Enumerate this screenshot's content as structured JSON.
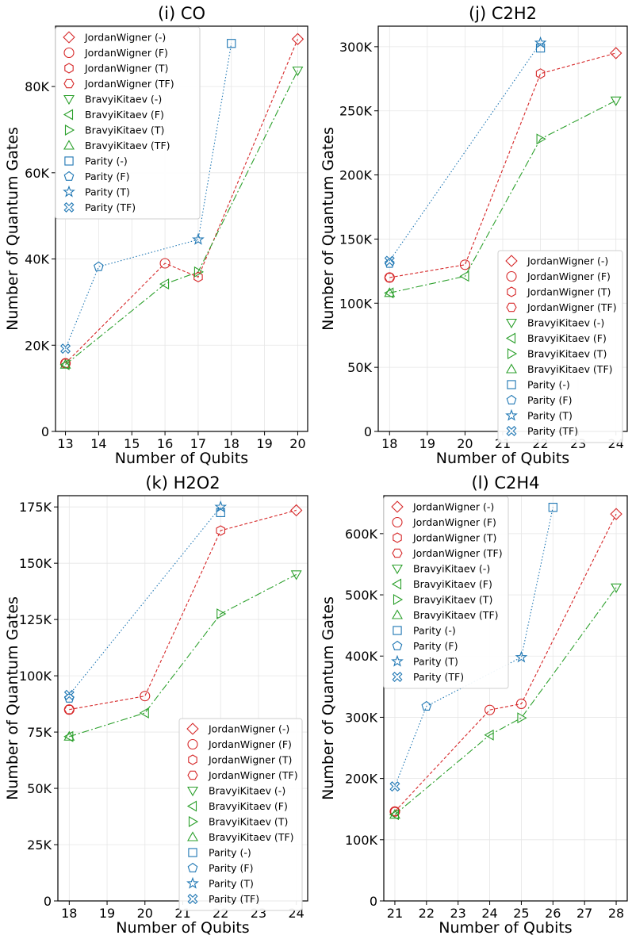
{
  "figure": {
    "ylabel": "Number of Quantum Gates",
    "xlabel": "Number of Qubits"
  },
  "series_styles": [
    {
      "name": "JordanWigner (-)",
      "color": "#d62728",
      "marker": "diamond"
    },
    {
      "name": "JordanWigner (F)",
      "color": "#d62728",
      "marker": "circle"
    },
    {
      "name": "JordanWigner (T)",
      "color": "#d62728",
      "marker": "hexagon"
    },
    {
      "name": "JordanWigner (TF)",
      "color": "#d62728",
      "marker": "hexagon2"
    },
    {
      "name": "BravyiKitaev (-)",
      "color": "#2ca02c",
      "marker": "triangle-down"
    },
    {
      "name": "BravyiKitaev (F)",
      "color": "#2ca02c",
      "marker": "triangle-left"
    },
    {
      "name": "BravyiKitaev (T)",
      "color": "#2ca02c",
      "marker": "triangle-right"
    },
    {
      "name": "BravyiKitaev (TF)",
      "color": "#2ca02c",
      "marker": "triangle-up"
    },
    {
      "name": "Parity (-)",
      "color": "#1f77b4",
      "marker": "square"
    },
    {
      "name": "Parity (F)",
      "color": "#1f77b4",
      "marker": "pentagon"
    },
    {
      "name": "Parity (T)",
      "color": "#1f77b4",
      "marker": "star"
    },
    {
      "name": "Parity (TF)",
      "color": "#1f77b4",
      "marker": "x-filled"
    }
  ],
  "chart_data": [
    {
      "type": "line",
      "title": "(i) CO",
      "xlabel": "Number of Qubits",
      "ylabel": "Number of Quantum Gates",
      "xlim": [
        12.7,
        20.3
      ],
      "ylim": [
        0,
        94000
      ],
      "xticks": [
        13,
        14,
        15,
        16,
        17,
        18,
        19,
        20
      ],
      "yticks": [
        0,
        20000,
        40000,
        60000,
        80000
      ],
      "ytick_labels": [
        "0",
        "20K",
        "40K",
        "60K",
        "80K"
      ],
      "legend_position": "top-left",
      "series": [
        {
          "name": "JordanWigner (-)",
          "x": [
            20
          ],
          "y": [
            91000
          ]
        },
        {
          "name": "JordanWigner (F)",
          "x": [
            13,
            16
          ],
          "y": [
            15800,
            39000
          ]
        },
        {
          "name": "JordanWigner (T)",
          "x": [
            17
          ],
          "y": [
            35800
          ]
        },
        {
          "name": "JordanWigner (TF)",
          "x": [
            13
          ],
          "y": [
            15800
          ]
        },
        {
          "name": "BravyiKitaev (-)",
          "x": [
            20
          ],
          "y": [
            83700
          ]
        },
        {
          "name": "BravyiKitaev (F)",
          "x": [
            13,
            16
          ],
          "y": [
            15500,
            34200
          ]
        },
        {
          "name": "BravyiKitaev (T)",
          "x": [
            17
          ],
          "y": [
            37000
          ]
        },
        {
          "name": "BravyiKitaev (TF)",
          "x": [
            13
          ],
          "y": [
            15500
          ]
        },
        {
          "name": "Parity (-)",
          "x": [
            18
          ],
          "y": [
            90000
          ]
        },
        {
          "name": "Parity (F)",
          "x": [
            14
          ],
          "y": [
            38200
          ]
        },
        {
          "name": "Parity (T)",
          "x": [
            17
          ],
          "y": [
            44500
          ]
        },
        {
          "name": "Parity (TF)",
          "x": [
            13
          ],
          "y": [
            19200
          ]
        }
      ]
    },
    {
      "type": "line",
      "title": "(j) C2H2",
      "xlabel": "Number of Qubits",
      "ylabel": "Number of Quantum Gates",
      "xlim": [
        17.7,
        24.3
      ],
      "ylim": [
        0,
        316000
      ],
      "xticks": [
        18,
        19,
        20,
        21,
        22,
        23,
        24
      ],
      "yticks": [
        0,
        50000,
        100000,
        150000,
        200000,
        250000,
        300000
      ],
      "ytick_labels": [
        "0",
        "50K",
        "100K",
        "150K",
        "200K",
        "250K",
        "300K"
      ],
      "legend_position": "center-right",
      "series": [
        {
          "name": "JordanWigner (-)",
          "x": [
            24
          ],
          "y": [
            295000
          ]
        },
        {
          "name": "JordanWigner (F)",
          "x": [
            18,
            20
          ],
          "y": [
            120000,
            130000
          ]
        },
        {
          "name": "JordanWigner (T)",
          "x": [
            22
          ],
          "y": [
            279000
          ]
        },
        {
          "name": "JordanWigner (TF)",
          "x": [
            18
          ],
          "y": [
            120000
          ]
        },
        {
          "name": "BravyiKitaev (-)",
          "x": [
            24
          ],
          "y": [
            258000
          ]
        },
        {
          "name": "BravyiKitaev (F)",
          "x": [
            18,
            20
          ],
          "y": [
            108000,
            121000
          ]
        },
        {
          "name": "BravyiKitaev (T)",
          "x": [
            22
          ],
          "y": [
            228000
          ]
        },
        {
          "name": "BravyiKitaev (TF)",
          "x": [
            18
          ],
          "y": [
            108000
          ]
        },
        {
          "name": "Parity (-)",
          "x": [
            22
          ],
          "y": [
            299000
          ]
        },
        {
          "name": "Parity (F)",
          "x": [
            18
          ],
          "y": [
            131000
          ]
        },
        {
          "name": "Parity (T)",
          "x": [
            22
          ],
          "y": [
            303000
          ]
        },
        {
          "name": "Parity (TF)",
          "x": [
            18
          ],
          "y": [
            133000
          ]
        }
      ]
    },
    {
      "type": "line",
      "title": "(k) H2O2",
      "xlabel": "Number of Qubits",
      "ylabel": "Number of Quantum Gates",
      "xlim": [
        17.7,
        24.3
      ],
      "ylim": [
        0,
        180000
      ],
      "xticks": [
        18,
        19,
        20,
        21,
        22,
        23,
        24
      ],
      "yticks": [
        0,
        25000,
        50000,
        75000,
        100000,
        125000,
        150000,
        175000
      ],
      "ytick_labels": [
        "0",
        "25K",
        "50K",
        "75K",
        "100K",
        "125K",
        "150K",
        "175K"
      ],
      "legend_position": "lower-right",
      "series": [
        {
          "name": "JordanWigner (-)",
          "x": [
            24
          ],
          "y": [
            173500
          ]
        },
        {
          "name": "JordanWigner (F)",
          "x": [
            18,
            20
          ],
          "y": [
            85000,
            91000
          ]
        },
        {
          "name": "JordanWigner (T)",
          "x": [
            22
          ],
          "y": [
            164500
          ]
        },
        {
          "name": "JordanWigner (TF)",
          "x": [
            18
          ],
          "y": [
            85000
          ]
        },
        {
          "name": "BravyiKitaev (-)",
          "x": [
            24
          ],
          "y": [
            145000
          ]
        },
        {
          "name": "BravyiKitaev (F)",
          "x": [
            18,
            20
          ],
          "y": [
            73000,
            83500
          ]
        },
        {
          "name": "BravyiKitaev (T)",
          "x": [
            22
          ],
          "y": [
            127500
          ]
        },
        {
          "name": "BravyiKitaev (TF)",
          "x": [
            18
          ],
          "y": [
            73000
          ]
        },
        {
          "name": "Parity (-)",
          "x": [
            22
          ],
          "y": [
            172500
          ]
        },
        {
          "name": "Parity (F)",
          "x": [
            18
          ],
          "y": [
            90000
          ]
        },
        {
          "name": "Parity (T)",
          "x": [
            22
          ],
          "y": [
            175000
          ]
        },
        {
          "name": "Parity (TF)",
          "x": [
            18
          ],
          "y": [
            91500
          ]
        }
      ]
    },
    {
      "type": "line",
      "title": "(l) C2H4",
      "xlabel": "Number of Qubits",
      "ylabel": "Number of Quantum Gates",
      "xlim": [
        20.65,
        28.35
      ],
      "ylim": [
        0,
        662000
      ],
      "xticks": [
        21,
        22,
        23,
        24,
        25,
        26,
        27,
        28
      ],
      "yticks": [
        0,
        100000,
        200000,
        300000,
        400000,
        500000,
        600000
      ],
      "ytick_labels": [
        "0",
        "100K",
        "200K",
        "300K",
        "400K",
        "500K",
        "600K"
      ],
      "legend_position": "top-left",
      "series": [
        {
          "name": "JordanWigner (-)",
          "x": [
            28
          ],
          "y": [
            632000
          ]
        },
        {
          "name": "JordanWigner (F)",
          "x": [
            21,
            24,
            25
          ],
          "y": [
            146000,
            312000,
            322000
          ]
        },
        {
          "name": "JordanWigner (T)",
          "x": [
            21
          ],
          "y": [
            146000
          ]
        },
        {
          "name": "JordanWigner (TF)",
          "x": [
            21
          ],
          "y": [
            146000
          ]
        },
        {
          "name": "BravyiKitaev (-)",
          "x": [
            28
          ],
          "y": [
            512000
          ]
        },
        {
          "name": "BravyiKitaev (F)",
          "x": [
            21,
            24
          ],
          "y": [
            141000,
            271000
          ]
        },
        {
          "name": "BravyiKitaev (T)",
          "x": [
            25
          ],
          "y": [
            299000
          ]
        },
        {
          "name": "BravyiKitaev (TF)",
          "x": [
            21
          ],
          "y": [
            141000
          ]
        },
        {
          "name": "Parity (-)",
          "x": [
            26
          ],
          "y": [
            643000
          ]
        },
        {
          "name": "Parity (F)",
          "x": [
            22
          ],
          "y": [
            318000
          ]
        },
        {
          "name": "Parity (T)",
          "x": [
            25
          ],
          "y": [
            398000
          ]
        },
        {
          "name": "Parity (TF)",
          "x": [
            21
          ],
          "y": [
            187000
          ]
        }
      ],
      "lines": [
        {
          "family": "JordanWigner",
          "x": [
            21,
            24,
            25,
            28
          ],
          "y": [
            146000,
            312000,
            322000,
            632000
          ]
        },
        {
          "family": "BravyiKitaev",
          "x": [
            21,
            24,
            25,
            28
          ],
          "y": [
            141000,
            271000,
            299000,
            512000
          ]
        },
        {
          "family": "Parity",
          "x": [
            21,
            22,
            25,
            26
          ],
          "y": [
            187000,
            318000,
            398000,
            643000
          ]
        }
      ]
    }
  ]
}
